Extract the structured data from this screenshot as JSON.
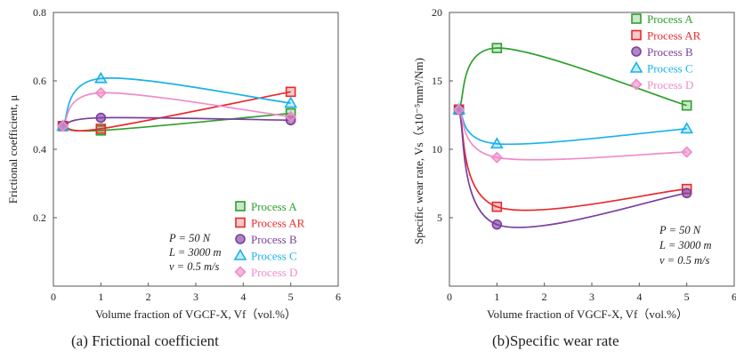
{
  "figures": [
    {
      "caption": "(a) Frictional coefficient",
      "conditions": [
        "P = 50 N",
        "L = 3000 m",
        "v = 0.5 m/s"
      ],
      "chart_data": {
        "type": "line",
        "xlabel": "Volume fraction of VGCF-X, Vf（vol.%）",
        "ylabel": "Frictional coefficient, μ",
        "xlim": [
          0,
          6
        ],
        "ylim": [
          0,
          0.8
        ],
        "xticks": [
          "0",
          "1",
          "2",
          "3",
          "4",
          "5",
          "6"
        ],
        "yticks": [
          "0.2",
          "0.4",
          "0.6",
          "0.8"
        ],
        "legend_position": "bottom-right",
        "x": [
          0.2,
          1,
          5
        ],
        "series": [
          {
            "name": "Process A",
            "color": "#2ca02c",
            "marker": "square",
            "values": [
              0.468,
              0.455,
              0.505
            ]
          },
          {
            "name": "Process AR",
            "color": "#e8292c",
            "marker": "square",
            "values": [
              0.468,
              0.46,
              0.568
            ]
          },
          {
            "name": "Process B",
            "color": "#7b3fa0",
            "marker": "circle",
            "values": [
              0.468,
              0.492,
              0.485
            ]
          },
          {
            "name": "Process C",
            "color": "#1ab2e8",
            "marker": "triangle",
            "values": [
              0.468,
              0.607,
              0.535
            ]
          },
          {
            "name": "Process D",
            "color": "#f08cc8",
            "marker": "diamond",
            "values": [
              0.468,
              0.565,
              0.495
            ]
          }
        ]
      }
    },
    {
      "caption": "(b)Specific wear rate",
      "conditions": [
        "P = 50 N",
        "L = 3000 m",
        "v = 0.5 m/s"
      ],
      "chart_data": {
        "type": "line",
        "xlabel": "Volume fraction of VGCF-X, Vf（vol.%）",
        "ylabel": "Specific wear rate, Vs（x10⁻⁵mm³/Nm)",
        "xlim": [
          0,
          6
        ],
        "ylim": [
          0,
          20
        ],
        "xticks": [
          "0",
          "1",
          "2",
          "3",
          "4",
          "5",
          "6"
        ],
        "yticks": [
          "5",
          "10",
          "15",
          "20"
        ],
        "legend_position": "top-right",
        "x": [
          0.2,
          1,
          5
        ],
        "series": [
          {
            "name": "Process A",
            "color": "#2ca02c",
            "marker": "square",
            "values": [
              12.9,
              17.4,
              13.2
            ]
          },
          {
            "name": "Process AR",
            "color": "#e8292c",
            "marker": "square",
            "values": [
              12.9,
              5.8,
              7.1
            ]
          },
          {
            "name": "Process B",
            "color": "#7b3fa0",
            "marker": "circle",
            "values": [
              12.9,
              4.5,
              6.8
            ]
          },
          {
            "name": "Process C",
            "color": "#1ab2e8",
            "marker": "triangle",
            "values": [
              12.9,
              10.4,
              11.5
            ]
          },
          {
            "name": "Process D",
            "color": "#f08cc8",
            "marker": "diamond",
            "values": [
              12.9,
              9.4,
              9.8
            ]
          }
        ]
      }
    }
  ]
}
